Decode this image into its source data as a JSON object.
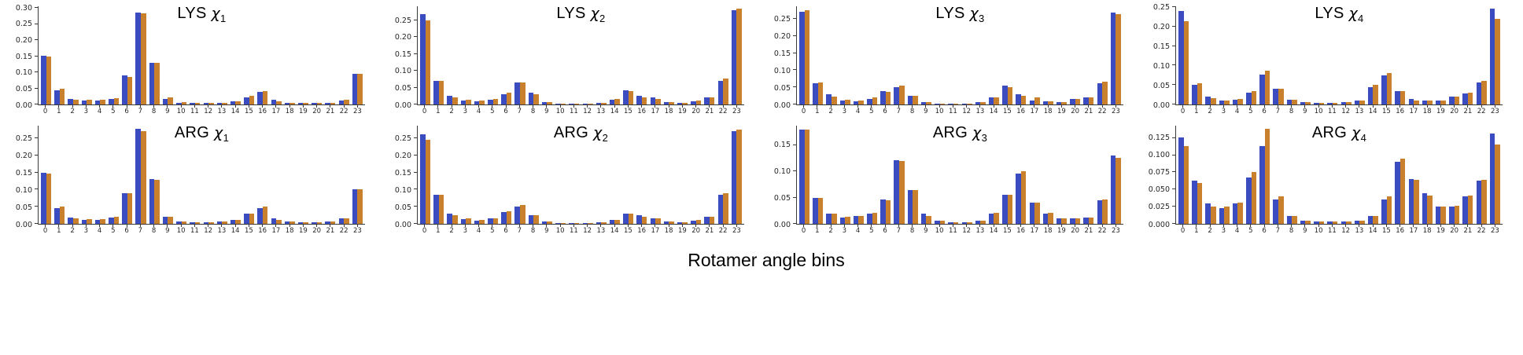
{
  "figure": {
    "xlabel": "Rotamer angle bins"
  },
  "colors": {
    "blue": "#3b4cc0",
    "orange": "#c8802d"
  },
  "bin_labels": [
    "0",
    "1",
    "2",
    "3",
    "4",
    "5",
    "6",
    "7",
    "8",
    "9",
    "10",
    "11",
    "12",
    "13",
    "14",
    "15",
    "16",
    "17",
    "18",
    "19",
    "20",
    "21",
    "22",
    "23"
  ],
  "chart_data": [
    {
      "id": "lys-chi1",
      "type": "bar",
      "title": "LYS χ1",
      "residue": "LYS",
      "chi_symbol": "χ",
      "chi_index": "1",
      "yticks": [
        "0.00",
        "0.05",
        "0.10",
        "0.15",
        "0.20",
        "0.25",
        "0.30"
      ],
      "ytick_values": [
        0,
        0.05,
        0.1,
        0.15,
        0.2,
        0.25,
        0.3
      ],
      "ylim": [
        0,
        0.305
      ],
      "series": [
        {
          "name": "blue",
          "values": [
            0.152,
            0.044,
            0.018,
            0.012,
            0.012,
            0.017,
            0.09,
            0.285,
            0.13,
            0.018,
            0.006,
            0.004,
            0.004,
            0.006,
            0.01,
            0.022,
            0.04,
            0.014,
            0.006,
            0.004,
            0.004,
            0.006,
            0.012,
            0.095
          ]
        },
        {
          "name": "orange",
          "values": [
            0.15,
            0.05,
            0.015,
            0.014,
            0.014,
            0.02,
            0.086,
            0.284,
            0.129,
            0.021,
            0.007,
            0.004,
            0.004,
            0.006,
            0.011,
            0.026,
            0.041,
            0.011,
            0.006,
            0.004,
            0.004,
            0.006,
            0.015,
            0.094
          ]
        }
      ]
    },
    {
      "id": "lys-chi2",
      "type": "bar",
      "title": "LYS χ2",
      "residue": "LYS",
      "chi_symbol": "χ",
      "chi_index": "2",
      "yticks": [
        "0.00",
        "0.05",
        "0.10",
        "0.15",
        "0.20",
        "0.25"
      ],
      "ytick_values": [
        0,
        0.05,
        0.1,
        0.15,
        0.2,
        0.25
      ],
      "ylim": [
        0,
        0.292
      ],
      "series": [
        {
          "name": "blue",
          "values": [
            0.268,
            0.07,
            0.026,
            0.012,
            0.01,
            0.015,
            0.031,
            0.065,
            0.036,
            0.006,
            0.003,
            0.002,
            0.003,
            0.004,
            0.015,
            0.041,
            0.025,
            0.02,
            0.006,
            0.005,
            0.01,
            0.02,
            0.07,
            0.28
          ]
        },
        {
          "name": "orange",
          "values": [
            0.251,
            0.071,
            0.021,
            0.014,
            0.011,
            0.016,
            0.035,
            0.066,
            0.031,
            0.007,
            0.003,
            0.002,
            0.003,
            0.005,
            0.016,
            0.04,
            0.021,
            0.016,
            0.006,
            0.005,
            0.011,
            0.021,
            0.076,
            0.284
          ]
        }
      ]
    },
    {
      "id": "lys-chi3",
      "type": "bar",
      "title": "LYS χ3",
      "residue": "LYS",
      "chi_symbol": "χ",
      "chi_index": "3",
      "yticks": [
        "0.00",
        "0.05",
        "0.10",
        "0.15",
        "0.20",
        "0.25"
      ],
      "ytick_values": [
        0,
        0.05,
        0.1,
        0.15,
        0.2,
        0.25
      ],
      "ylim": [
        0,
        0.287
      ],
      "series": [
        {
          "name": "blue",
          "values": [
            0.27,
            0.061,
            0.03,
            0.012,
            0.01,
            0.016,
            0.039,
            0.05,
            0.026,
            0.006,
            0.003,
            0.002,
            0.003,
            0.006,
            0.02,
            0.056,
            0.03,
            0.012,
            0.01,
            0.006,
            0.015,
            0.02,
            0.062,
            0.268
          ]
        },
        {
          "name": "orange",
          "values": [
            0.275,
            0.065,
            0.024,
            0.014,
            0.011,
            0.02,
            0.036,
            0.055,
            0.026,
            0.006,
            0.003,
            0.002,
            0.003,
            0.006,
            0.021,
            0.05,
            0.026,
            0.02,
            0.01,
            0.006,
            0.016,
            0.021,
            0.066,
            0.264
          ]
        }
      ]
    },
    {
      "id": "lys-chi4",
      "type": "bar",
      "title": "LYS χ4",
      "residue": "LYS",
      "chi_symbol": "χ",
      "chi_index": "4",
      "yticks": [
        "0.00",
        "0.05",
        "0.10",
        "0.15",
        "0.20",
        "0.25"
      ],
      "ytick_values": [
        0,
        0.05,
        0.1,
        0.15,
        0.2,
        0.25
      ],
      "ylim": [
        0,
        0.252
      ],
      "series": [
        {
          "name": "blue",
          "values": [
            0.24,
            0.05,
            0.02,
            0.01,
            0.012,
            0.03,
            0.076,
            0.04,
            0.012,
            0.006,
            0.004,
            0.004,
            0.006,
            0.01,
            0.045,
            0.075,
            0.035,
            0.014,
            0.01,
            0.01,
            0.02,
            0.028,
            0.056,
            0.245
          ]
        },
        {
          "name": "orange",
          "values": [
            0.214,
            0.055,
            0.016,
            0.011,
            0.014,
            0.034,
            0.086,
            0.041,
            0.012,
            0.006,
            0.004,
            0.004,
            0.006,
            0.011,
            0.05,
            0.08,
            0.034,
            0.011,
            0.01,
            0.01,
            0.021,
            0.03,
            0.06,
            0.22
          ]
        }
      ]
    },
    {
      "id": "arg-chi1",
      "type": "bar",
      "title": "ARG χ1",
      "residue": "ARG",
      "chi_symbol": "χ",
      "chi_index": "1",
      "yticks": [
        "0.00",
        "0.05",
        "0.10",
        "0.15",
        "0.20",
        "0.25"
      ],
      "ytick_values": [
        0,
        0.05,
        0.1,
        0.15,
        0.2,
        0.25
      ],
      "ylim": [
        0,
        0.287
      ],
      "series": [
        {
          "name": "blue",
          "values": [
            0.15,
            0.046,
            0.019,
            0.011,
            0.012,
            0.019,
            0.09,
            0.277,
            0.13,
            0.02,
            0.006,
            0.004,
            0.004,
            0.006,
            0.011,
            0.03,
            0.046,
            0.015,
            0.006,
            0.004,
            0.004,
            0.006,
            0.015,
            0.1
          ]
        },
        {
          "name": "orange",
          "values": [
            0.146,
            0.051,
            0.015,
            0.013,
            0.014,
            0.021,
            0.089,
            0.27,
            0.129,
            0.021,
            0.007,
            0.004,
            0.004,
            0.006,
            0.012,
            0.031,
            0.051,
            0.012,
            0.006,
            0.004,
            0.004,
            0.006,
            0.016,
            0.1
          ]
        }
      ]
    },
    {
      "id": "arg-chi2",
      "type": "bar",
      "title": "ARG χ2",
      "residue": "ARG",
      "chi_symbol": "χ",
      "chi_index": "2",
      "yticks": [
        "0.00",
        "0.05",
        "0.10",
        "0.15",
        "0.20",
        "0.25"
      ],
      "ytick_values": [
        0,
        0.05,
        0.1,
        0.15,
        0.2,
        0.25
      ],
      "ylim": [
        0,
        0.287
      ],
      "series": [
        {
          "name": "blue",
          "values": [
            0.262,
            0.086,
            0.03,
            0.014,
            0.01,
            0.015,
            0.034,
            0.05,
            0.026,
            0.006,
            0.003,
            0.002,
            0.003,
            0.005,
            0.011,
            0.03,
            0.026,
            0.016,
            0.006,
            0.005,
            0.01,
            0.02,
            0.085,
            0.271
          ]
        },
        {
          "name": "orange",
          "values": [
            0.246,
            0.086,
            0.025,
            0.015,
            0.011,
            0.016,
            0.036,
            0.055,
            0.026,
            0.006,
            0.003,
            0.002,
            0.003,
            0.005,
            0.012,
            0.03,
            0.021,
            0.015,
            0.006,
            0.005,
            0.011,
            0.021,
            0.09,
            0.276
          ]
        }
      ]
    },
    {
      "id": "arg-chi3",
      "type": "bar",
      "title": "ARG χ3",
      "residue": "ARG",
      "chi_symbol": "χ",
      "chi_index": "3",
      "yticks": [
        "0.00",
        "0.05",
        "0.10",
        "0.15"
      ],
      "ytick_values": [
        0,
        0.05,
        0.1,
        0.15
      ],
      "ylim": [
        0,
        0.187
      ],
      "series": [
        {
          "name": "blue",
          "values": [
            0.18,
            0.05,
            0.02,
            0.012,
            0.015,
            0.02,
            0.046,
            0.121,
            0.065,
            0.019,
            0.006,
            0.003,
            0.003,
            0.006,
            0.02,
            0.056,
            0.096,
            0.04,
            0.02,
            0.01,
            0.01,
            0.012,
            0.045,
            0.13
          ]
        },
        {
          "name": "orange",
          "values": [
            0.179,
            0.049,
            0.02,
            0.014,
            0.015,
            0.021,
            0.045,
            0.119,
            0.065,
            0.015,
            0.006,
            0.003,
            0.003,
            0.006,
            0.021,
            0.055,
            0.1,
            0.041,
            0.021,
            0.01,
            0.01,
            0.012,
            0.046,
            0.126
          ]
        }
      ]
    },
    {
      "id": "arg-chi4",
      "type": "bar",
      "title": "ARG χ4",
      "residue": "ARG",
      "chi_symbol": "χ",
      "chi_index": "4",
      "yticks": [
        "0.000",
        "0.025",
        "0.050",
        "0.075",
        "0.100",
        "0.125"
      ],
      "ytick_values": [
        0,
        0.025,
        0.05,
        0.075,
        0.1,
        0.125
      ],
      "ylim": [
        0,
        0.143
      ],
      "series": [
        {
          "name": "blue",
          "values": [
            0.126,
            0.063,
            0.03,
            0.023,
            0.03,
            0.068,
            0.113,
            0.035,
            0.011,
            0.005,
            0.003,
            0.003,
            0.003,
            0.005,
            0.011,
            0.036,
            0.09,
            0.065,
            0.045,
            0.025,
            0.025,
            0.04,
            0.063,
            0.132
          ]
        },
        {
          "name": "orange",
          "values": [
            0.113,
            0.06,
            0.025,
            0.025,
            0.031,
            0.075,
            0.138,
            0.04,
            0.011,
            0.005,
            0.003,
            0.003,
            0.003,
            0.005,
            0.012,
            0.04,
            0.095,
            0.064,
            0.041,
            0.025,
            0.026,
            0.041,
            0.064,
            0.115
          ]
        }
      ]
    }
  ]
}
